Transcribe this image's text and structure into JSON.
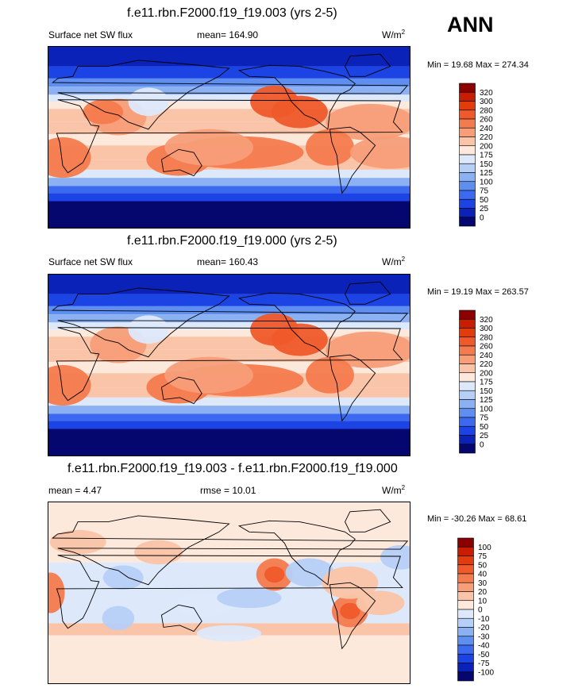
{
  "season": "ANN",
  "panels": [
    {
      "title": "f.e11.rbn.F2000.f19_f19.003 (yrs 2-5)",
      "left": "Surface net SW flux",
      "center": "mean= 164.90",
      "units": "W/m",
      "units_sup": "2",
      "minmax": "Min =  19.68 Max = 274.34"
    },
    {
      "title": "f.e11.rbn.F2000.f19_f19.000 (yrs 2-5)",
      "left": "Surface net SW flux",
      "center": "mean= 160.43",
      "units": "W/m",
      "units_sup": "2",
      "minmax": "Min =  19.19 Max = 263.57"
    },
    {
      "title": "f.e11.rbn.F2000.f19_f19.003 - f.e11.rbn.F2000.f19_f19.000",
      "left": "mean =   4.47",
      "center": "rmse =  10.01",
      "units": "W/m",
      "units_sup": "2",
      "minmax": "Min = -30.26 Max =  68.61"
    }
  ],
  "chart_data": [
    {
      "type": "heatmap",
      "title": "f.e11.rbn.F2000.f19_f19.003 (yrs 2-5)",
      "subtitle": "Surface net SW flux",
      "mean": 164.9,
      "min": 19.68,
      "max": 274.34,
      "units": "W/m2",
      "levels": [
        0,
        25,
        50,
        75,
        100,
        125,
        150,
        175,
        200,
        220,
        240,
        260,
        280,
        300,
        320
      ],
      "level_labels": [
        "320",
        "300",
        "280",
        "260",
        "240",
        "220",
        "200",
        "175",
        "150",
        "125",
        "100",
        "75",
        "50",
        "25",
        "0"
      ],
      "colors": [
        "#8b0000",
        "#c81d00",
        "#e33c0c",
        "#ef5a2a",
        "#f47b4d",
        "#f79e78",
        "#fac4a8",
        "#fde8dc",
        "#dde9fb",
        "#b6cff7",
        "#8bb1f2",
        "#5e8ef0",
        "#3b6af0",
        "#1c44e4",
        "#0a22b8",
        "#05066e"
      ],
      "lon_range": [
        0,
        360
      ],
      "lat_range": [
        -90,
        90
      ]
    },
    {
      "type": "heatmap",
      "title": "f.e11.rbn.F2000.f19_f19.000 (yrs 2-5)",
      "subtitle": "Surface net SW flux",
      "mean": 160.43,
      "min": 19.19,
      "max": 263.57,
      "units": "W/m2",
      "levels": [
        0,
        25,
        50,
        75,
        100,
        125,
        150,
        175,
        200,
        220,
        240,
        260,
        280,
        300,
        320
      ],
      "level_labels": [
        "320",
        "300",
        "280",
        "260",
        "240",
        "220",
        "200",
        "175",
        "150",
        "125",
        "100",
        "75",
        "50",
        "25",
        "0"
      ],
      "colors": [
        "#8b0000",
        "#c81d00",
        "#e33c0c",
        "#ef5a2a",
        "#f47b4d",
        "#f79e78",
        "#fac4a8",
        "#fde8dc",
        "#dde9fb",
        "#b6cff7",
        "#8bb1f2",
        "#5e8ef0",
        "#3b6af0",
        "#1c44e4",
        "#0a22b8",
        "#05066e"
      ],
      "lon_range": [
        0,
        360
      ],
      "lat_range": [
        -90,
        90
      ]
    },
    {
      "type": "heatmap",
      "title": "f.e11.rbn.F2000.f19_f19.003 - f.e11.rbn.F2000.f19_f19.000",
      "mean": 4.47,
      "rmse": 10.01,
      "min": -30.26,
      "max": 68.61,
      "units": "W/m2",
      "levels": [
        -100,
        -75,
        -50,
        -40,
        -30,
        -20,
        -10,
        0,
        10,
        20,
        30,
        40,
        50,
        75,
        100
      ],
      "level_labels": [
        "100",
        "75",
        "50",
        "40",
        "30",
        "20",
        "10",
        "0",
        "-10",
        "-20",
        "-30",
        "-40",
        "-50",
        "-75",
        "-100"
      ],
      "colors": [
        "#8b0000",
        "#c81d00",
        "#e33c0c",
        "#ef5a2a",
        "#f47b4d",
        "#f79e78",
        "#fac4a8",
        "#fde8dc",
        "#dde9fb",
        "#b6cff7",
        "#8bb1f2",
        "#5e8ef0",
        "#3b6af0",
        "#1c44e4",
        "#0a22b8",
        "#05066e"
      ],
      "lon_range": [
        0,
        360
      ],
      "lat_range": [
        -90,
        90
      ]
    }
  ]
}
